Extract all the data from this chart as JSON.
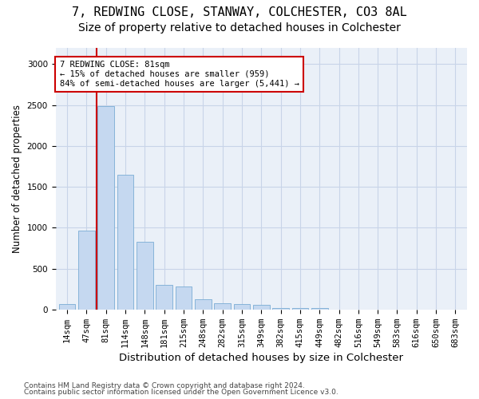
{
  "title1": "7, REDWING CLOSE, STANWAY, COLCHESTER, CO3 8AL",
  "title2": "Size of property relative to detached houses in Colchester",
  "xlabel": "Distribution of detached houses by size in Colchester",
  "ylabel": "Number of detached properties",
  "footer1": "Contains HM Land Registry data © Crown copyright and database right 2024.",
  "footer2": "Contains public sector information licensed under the Open Government Licence v3.0.",
  "categories": [
    "14sqm",
    "47sqm",
    "81sqm",
    "114sqm",
    "148sqm",
    "181sqm",
    "215sqm",
    "248sqm",
    "282sqm",
    "315sqm",
    "349sqm",
    "382sqm",
    "415sqm",
    "449sqm",
    "482sqm",
    "516sqm",
    "549sqm",
    "583sqm",
    "616sqm",
    "650sqm",
    "683sqm"
  ],
  "values": [
    65,
    960,
    2490,
    1650,
    830,
    300,
    280,
    125,
    75,
    65,
    55,
    20,
    20,
    15,
    0,
    0,
    0,
    0,
    0,
    0,
    0
  ],
  "bar_color": "#c5d8f0",
  "bar_edge_color": "#7aadd4",
  "highlight_line_color": "#cc0000",
  "highlight_bar_index": 2,
  "annotation_text": "7 REDWING CLOSE: 81sqm\n← 15% of detached houses are smaller (959)\n84% of semi-detached houses are larger (5,441) →",
  "annotation_box_color": "#ffffff",
  "annotation_box_edge": "#cc0000",
  "ylim": [
    0,
    3200
  ],
  "yticks": [
    0,
    500,
    1000,
    1500,
    2000,
    2500,
    3000
  ],
  "background_color": "#ffffff",
  "plot_bg_color": "#eaf0f8",
  "grid_color": "#c8d4e8",
  "title1_fontsize": 11,
  "title2_fontsize": 10,
  "tick_fontsize": 7.5,
  "ylabel_fontsize": 8.5,
  "xlabel_fontsize": 9.5,
  "footer_fontsize": 6.5,
  "ann_fontsize": 7.5
}
